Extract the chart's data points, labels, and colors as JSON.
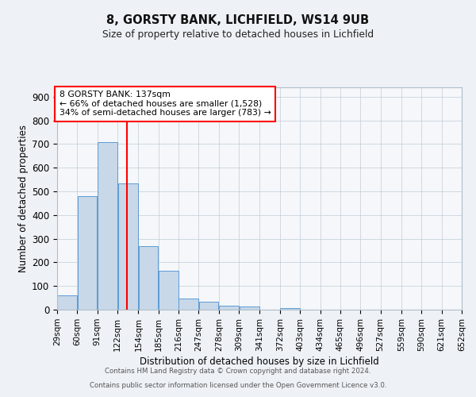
{
  "title1": "8, GORSTY BANK, LICHFIELD, WS14 9UB",
  "title2": "Size of property relative to detached houses in Lichfield",
  "xlabel": "Distribution of detached houses by size in Lichfield",
  "ylabel": "Number of detached properties",
  "bin_labels": [
    "29sqm",
    "60sqm",
    "91sqm",
    "122sqm",
    "154sqm",
    "185sqm",
    "216sqm",
    "247sqm",
    "278sqm",
    "309sqm",
    "341sqm",
    "372sqm",
    "403sqm",
    "434sqm",
    "465sqm",
    "496sqm",
    "527sqm",
    "559sqm",
    "590sqm",
    "621sqm",
    "652sqm"
  ],
  "bin_edges": [
    29,
    60,
    91,
    122,
    154,
    185,
    216,
    247,
    278,
    309,
    341,
    372,
    403,
    434,
    465,
    496,
    527,
    559,
    590,
    621,
    652
  ],
  "bar_heights": [
    60,
    480,
    710,
    535,
    270,
    165,
    47,
    35,
    18,
    13,
    0,
    8,
    0,
    0,
    0,
    0,
    0,
    0,
    0,
    0
  ],
  "bar_color": "#c8d8e8",
  "bar_edge_color": "#5b9bd5",
  "red_line_x": 137,
  "ylim": [
    0,
    940
  ],
  "yticks": [
    0,
    100,
    200,
    300,
    400,
    500,
    600,
    700,
    800,
    900
  ],
  "annotation_line1": "8 GORSTY BANK: 137sqm",
  "annotation_line2": "← 66% of detached houses are smaller (1,528)",
  "annotation_line3": "34% of semi-detached houses are larger (783) →",
  "footnote1": "Contains HM Land Registry data © Crown copyright and database right 2024.",
  "footnote2": "Contains public sector information licensed under the Open Government Licence v3.0.",
  "bg_color": "#eef2f7",
  "plot_bg_color": "#f5f7fa"
}
